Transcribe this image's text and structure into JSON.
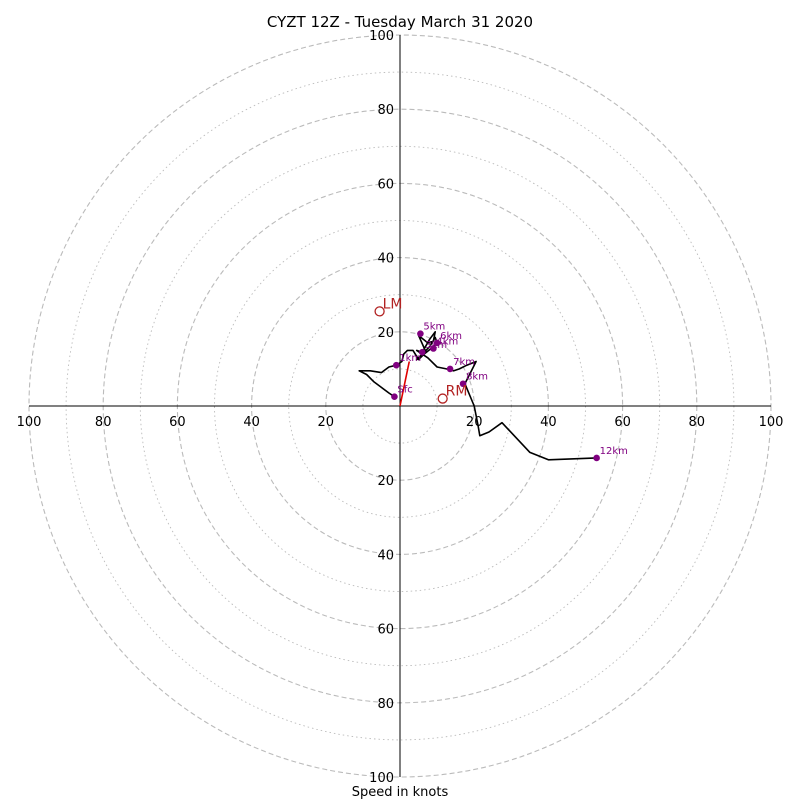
{
  "chart_data": {
    "type": "hodograph",
    "title": "CYZT 12Z - Tuesday March 31 2020",
    "xlabel": "Speed in knots",
    "max_speed": 100,
    "ring_labels": [
      "20",
      "40",
      "60",
      "80",
      "100"
    ],
    "axis_tick_labels": [
      "100",
      "80",
      "60",
      "40",
      "20",
      "20",
      "40",
      "60",
      "80",
      "100"
    ],
    "colors": {
      "trace": "#000000",
      "points": "#800080",
      "storm_motion": "#b22222",
      "shear_vector": "#e00000",
      "grid": "#bbbbbb"
    },
    "trace": [
      [
        -1.5,
        2.5
      ],
      [
        -3,
        3.5
      ],
      [
        -5,
        5
      ],
      [
        -7,
        6.5
      ],
      [
        -9,
        8.5
      ],
      [
        -11,
        9.5
      ],
      [
        -8,
        9.5
      ],
      [
        -5,
        9
      ],
      [
        -3,
        10.5
      ],
      [
        -1,
        11
      ],
      [
        0.5,
        12
      ],
      [
        1,
        14
      ],
      [
        2,
        15
      ],
      [
        3.5,
        15
      ],
      [
        5,
        12.5
      ],
      [
        6.5,
        14
      ],
      [
        9,
        16
      ],
      [
        10,
        17
      ],
      [
        9.5,
        18.5
      ],
      [
        8,
        16
      ],
      [
        6,
        14
      ],
      [
        4.5,
        12.5
      ],
      [
        7,
        14.5
      ],
      [
        5,
        19
      ],
      [
        7.5,
        17
      ],
      [
        9,
        17.5
      ],
      [
        9.5,
        20
      ],
      [
        8,
        18
      ],
      [
        6,
        14.5
      ],
      [
        4.5,
        15
      ],
      [
        7.5,
        13
      ],
      [
        10,
        10.5
      ],
      [
        12.5,
        10
      ],
      [
        14.5,
        9.5
      ],
      [
        16,
        10
      ],
      [
        18,
        11
      ],
      [
        20.5,
        12
      ],
      [
        19,
        9
      ],
      [
        17.5,
        6
      ],
      [
        20,
        0
      ],
      [
        21,
        -5
      ],
      [
        21.5,
        -8
      ],
      [
        24,
        -7
      ],
      [
        27.5,
        -4.5
      ],
      [
        35,
        -12.5
      ],
      [
        40,
        -14.5
      ],
      [
        53,
        -14
      ]
    ],
    "height_markers": [
      {
        "label": "Sfc",
        "u": -1.5,
        "v": 2.5
      },
      {
        "label": "1km",
        "u": -1,
        "v": 11
      },
      {
        "label": "3km",
        "u": 6,
        "v": 14.5
      },
      {
        "label": "4km",
        "u": 9,
        "v": 15.5
      },
      {
        "label": "5km",
        "u": 5.5,
        "v": 19.5
      },
      {
        "label": "6km",
        "u": 10,
        "v": 17
      },
      {
        "label": "7km",
        "u": 13.5,
        "v": 10
      },
      {
        "label": "8km",
        "u": 17,
        "v": 6
      },
      {
        "label": "12km",
        "u": 53,
        "v": -14
      }
    ],
    "storm_motions": [
      {
        "label": "LM",
        "u": -5.5,
        "v": 25.5
      },
      {
        "label": "RM",
        "u": 11.5,
        "v": 2
      }
    ],
    "shear_vector": {
      "from": [
        0,
        0
      ],
      "to": [
        2.5,
        12
      ]
    }
  }
}
